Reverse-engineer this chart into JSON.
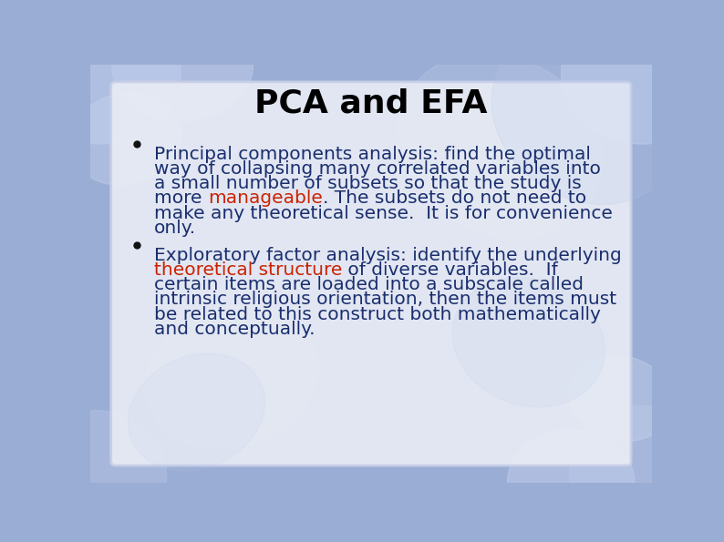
{
  "title": "PCA and EFA",
  "title_fontsize": 26,
  "title_color": "#000000",
  "background_color": "#9aadd4",
  "card_color": "#e8ecf5",
  "card_edge_color": "#c8cfe8",
  "text_color": "#1a2e6e",
  "red_color": "#cc2200",
  "text_fontsize": 14.5,
  "bullet1_lines": [
    [
      {
        "text": "Principal components analysis: find the optimal",
        "color": "#1a2e6e"
      }
    ],
    [
      {
        "text": "way of collapsing many correlated variables into",
        "color": "#1a2e6e"
      }
    ],
    [
      {
        "text": "a small number of subsets so that the study is",
        "color": "#1a2e6e"
      }
    ],
    [
      {
        "text": "more ",
        "color": "#1a2e6e"
      },
      {
        "text": "manageable",
        "color": "#cc2200"
      },
      {
        "text": ". The subsets do not need to",
        "color": "#1a2e6e"
      }
    ],
    [
      {
        "text": "make any theoretical sense.  It is for convenience",
        "color": "#1a2e6e"
      }
    ],
    [
      {
        "text": "only.",
        "color": "#1a2e6e"
      }
    ]
  ],
  "bullet2_lines": [
    [
      {
        "text": "Exploratory factor analysis: identify the underlying",
        "color": "#1a2e6e"
      }
    ],
    [
      {
        "text": "theoretical structure",
        "color": "#cc2200"
      },
      {
        "text": " of diverse variables.  If",
        "color": "#1a2e6e"
      }
    ],
    [
      {
        "text": "certain items are loaded into a subscale called",
        "color": "#1a2e6e"
      }
    ],
    [
      {
        "text": "intrinsic religious orientation, then the items must",
        "color": "#1a2e6e"
      }
    ],
    [
      {
        "text": "be related to this construct both mathematically",
        "color": "#1a2e6e"
      }
    ],
    [
      {
        "text": "and conceptually.",
        "color": "#1a2e6e"
      }
    ]
  ]
}
